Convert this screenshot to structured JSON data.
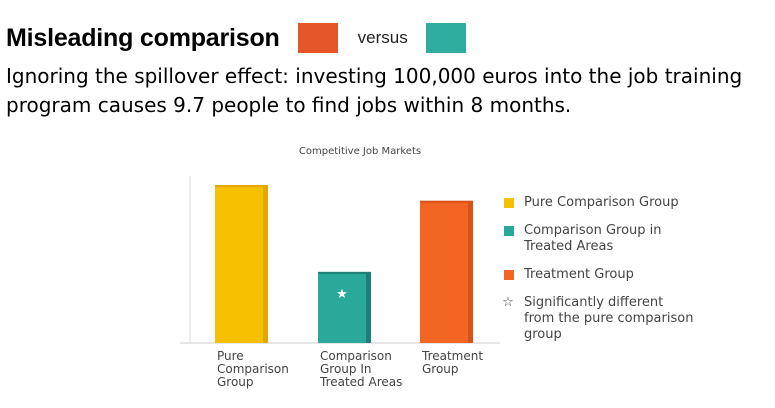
{
  "heading": {
    "title": "Misleading comparison",
    "versus": "versus",
    "left_color": "#e5572a",
    "right_color": "#2fae9f"
  },
  "subtitle": "Ignoring the spillover effect: investing 100,000 euros into the job training program causes 9.7 people to find jobs within 8 months.",
  "chart_data": {
    "type": "bar",
    "title": "Competitive Job Markets",
    "categories": [
      "Pure Comparison Group",
      "Comparison Group In Treated Areas",
      "Treatment Group"
    ],
    "category_lines": [
      [
        "Pure",
        "Comparison",
        "Group"
      ],
      [
        "Comparison",
        "Group In",
        "Treated Areas"
      ],
      [
        "Treatment",
        "Group"
      ]
    ],
    "values": [
      100,
      45,
      90
    ],
    "ylim": [
      0,
      100
    ],
    "colors": [
      "#f5c000",
      "#2aa89a",
      "#f26522"
    ],
    "shade_colors": [
      "#e0a800",
      "#1d8076",
      "#d8521a"
    ],
    "star_marker": "★",
    "starred_index": 1,
    "grid": false,
    "legend_position": "right",
    "legend": [
      {
        "label": "Pure Comparison Group",
        "color": "#f5c000"
      },
      {
        "label": "Comparison Group in Treated Areas",
        "color": "#2aa89a"
      },
      {
        "label": "Treatment Group",
        "color": "#f26522"
      }
    ],
    "annotation": {
      "symbol": "☆",
      "text": "Significantly different from the pure comparison group"
    }
  }
}
